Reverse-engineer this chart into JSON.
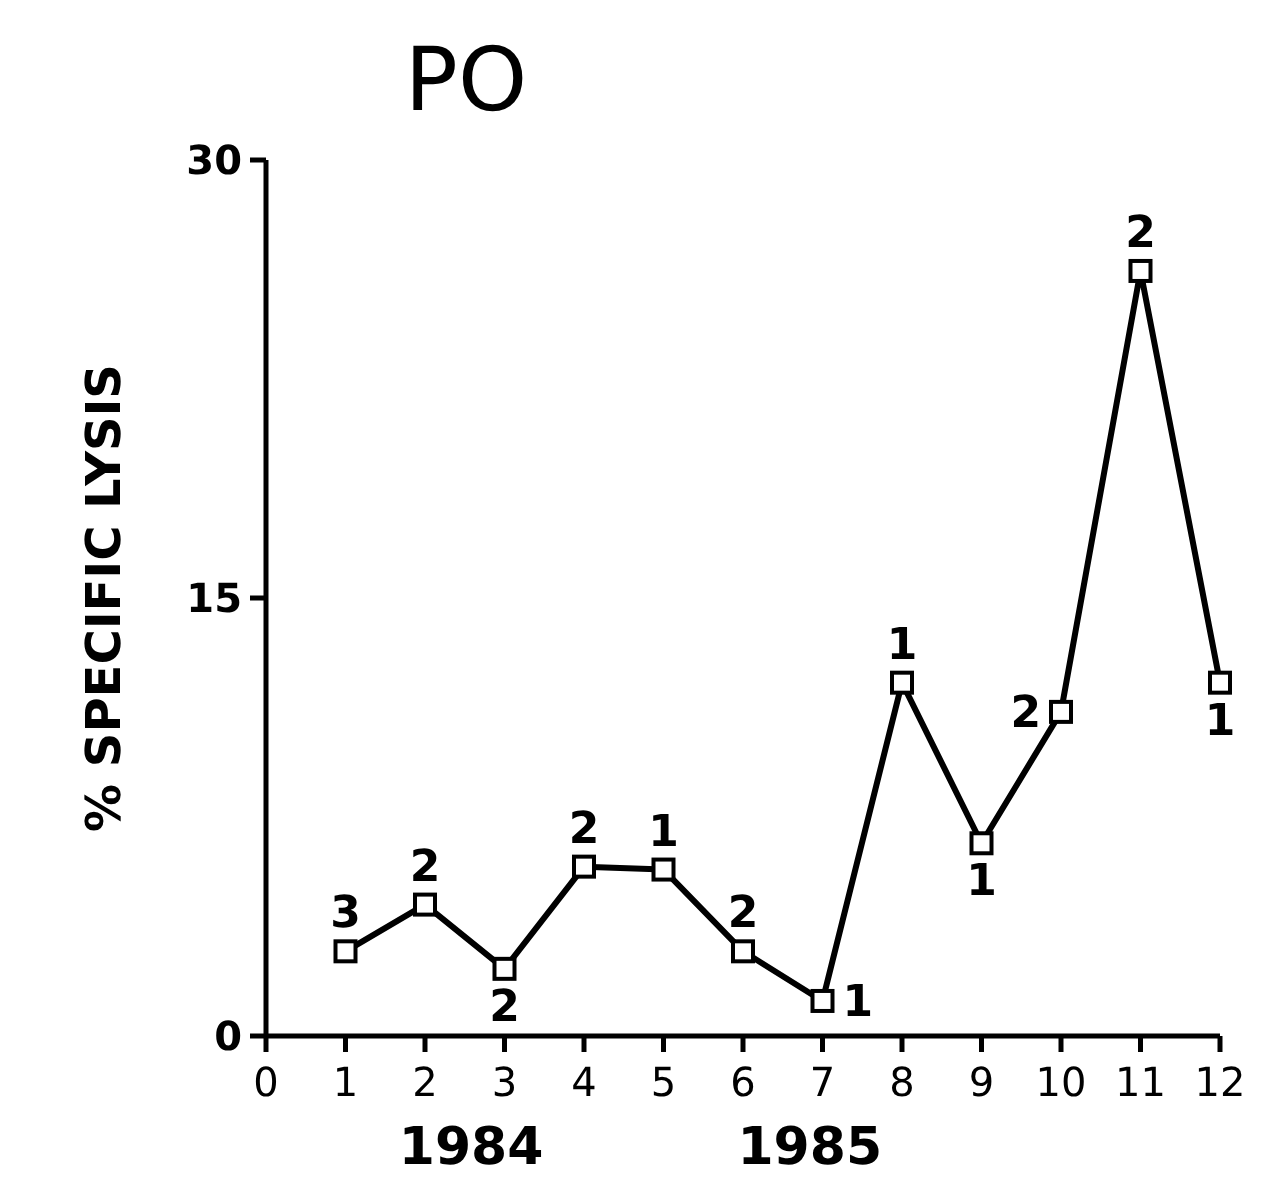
{
  "chart_data": {
    "type": "line",
    "title": "PO",
    "ylabel": "% SPECIFIC LYSIS",
    "x": [
      1,
      2,
      3,
      4,
      5,
      6,
      7,
      8,
      9,
      10,
      11,
      12
    ],
    "series": [
      {
        "color": "#000000",
        "values": [
          2.9,
          4.5,
          2.3,
          5.8,
          5.7,
          2.9,
          1.2,
          12.1,
          6.6,
          11.1,
          26.2,
          12.1
        ]
      }
    ],
    "xlim": [
      0,
      12
    ],
    "xticks": [
      0,
      1,
      2,
      3,
      4,
      5,
      6,
      7,
      8,
      9,
      10,
      11,
      12
    ],
    "ylim": [
      0,
      30
    ],
    "yticks": [
      0,
      15,
      30
    ],
    "marker": "square",
    "line_style": "solid",
    "grid": false,
    "annotations": [
      {
        "text": "3",
        "x": 1,
        "y": 2.9
      },
      {
        "text": "2",
        "x": 2,
        "y": 4.5
      },
      {
        "text": "2",
        "x": 3,
        "y": 2.3
      },
      {
        "text": "2",
        "x": 4,
        "y": 5.8
      },
      {
        "text": "1",
        "x": 5,
        "y": 5.7
      },
      {
        "text": "2",
        "x": 6,
        "y": 2.9
      },
      {
        "text": "1",
        "x": 7,
        "y": 1.2
      },
      {
        "text": "1",
        "x": 8,
        "y": 12.1
      },
      {
        "text": "1",
        "x": 9,
        "y": 6.6
      },
      {
        "text": "2",
        "x": 10,
        "y": 11.1
      },
      {
        "text": "2",
        "x": 11,
        "y": 26.2
      },
      {
        "text": "1",
        "x": 12,
        "y": 12.1
      },
      "1984",
      "1985"
    ]
  }
}
